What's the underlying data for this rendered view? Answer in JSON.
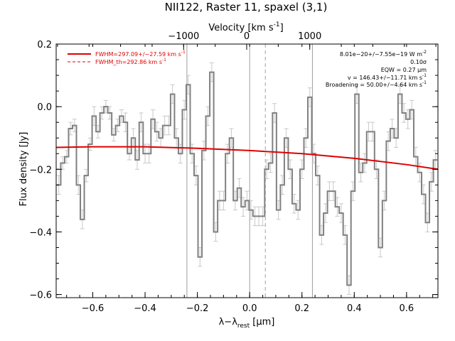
{
  "chart_data": {
    "type": "line",
    "title": "NII122, Raster 11, spaxel (3,1)",
    "xlabel_prefix": "λ−λ",
    "xlabel_sub": "rest",
    "xlabel_suffix": " [μm]",
    "ylabel": "Flux density [Jy]",
    "top_axis_label": "Velocity [km s",
    "top_axis_label_sup": "-1",
    "top_axis_label_end": "]",
    "xlim": [
      -0.74,
      0.72
    ],
    "ylim": [
      -0.61,
      0.2
    ],
    "x_ticks": [
      -0.6,
      -0.4,
      -0.2,
      0.0,
      0.2,
      0.4,
      0.6
    ],
    "x_tick_labels": [
      "−0.6",
      "−0.4",
      "−0.2",
      "0.0",
      "0.2",
      "0.4",
      "0.6"
    ],
    "y_ticks": [
      0.2,
      0.0,
      -0.2,
      -0.4,
      -0.6
    ],
    "y_tick_labels": [
      "0.2",
      "0.0",
      "−0.2",
      "−0.4",
      "−0.6"
    ],
    "top_ticks": [
      -1000,
      0,
      1000
    ],
    "top_tick_labels": [
      "−1000",
      "0",
      "1000"
    ],
    "reference_lines": {
      "solid": [
        -0.24,
        0.0,
        0.24
      ],
      "dashed": [
        0.06
      ]
    },
    "legend": {
      "fwhm": "FWHM=297.09+/−27.59 km s",
      "fwhm_sup": "-1",
      "fwhm_th": "FWHM_th=292.86 km s",
      "fwhm_th_sup": "-1"
    },
    "stats": {
      "flux": "8.01e−20+/−7.55e−19 W m",
      "flux_sup": "-2",
      "sigma": "0.10σ",
      "eqw": "EQW = 0.27 μm",
      "velocity": "v = 146.43+/−11.71 km s",
      "velocity_sup": "-1",
      "broadening": "Broadening = 50.00+/−4.64 km s",
      "broadening_sup": "-1"
    },
    "colors": {
      "data": "#808080",
      "errorbar": "#c8c8c8",
      "fit": "#e00000",
      "ref_line": "#a0a0a0"
    },
    "series": [
      {
        "x": [
          -0.73,
          -0.715,
          -0.7,
          -0.685,
          -0.67,
          -0.655,
          -0.64,
          -0.625,
          -0.61,
          -0.595,
          -0.58,
          -0.565,
          -0.55,
          -0.535,
          -0.52,
          -0.505,
          -0.49,
          -0.475,
          -0.46,
          -0.445,
          -0.43,
          -0.415,
          -0.4,
          -0.385,
          -0.37,
          -0.355,
          -0.34,
          -0.325,
          -0.31,
          -0.295,
          -0.28,
          -0.265,
          -0.25,
          -0.235,
          -0.22,
          -0.205,
          -0.19,
          -0.175,
          -0.16,
          -0.145,
          -0.13,
          -0.115,
          -0.1,
          -0.085,
          -0.07,
          -0.055,
          -0.04,
          -0.025,
          -0.01,
          0.005,
          0.02,
          0.035,
          0.05,
          0.065,
          0.08,
          0.095,
          0.11,
          0.125,
          0.14,
          0.155,
          0.17,
          0.185,
          0.2,
          0.215,
          0.23,
          0.245,
          0.26,
          0.275,
          0.29,
          0.305,
          0.32,
          0.335,
          0.35,
          0.365,
          0.38,
          0.395,
          0.41,
          0.425,
          0.44,
          0.455,
          0.47,
          0.485,
          0.5,
          0.515,
          0.53,
          0.545,
          0.56,
          0.575,
          0.59,
          0.605,
          0.62,
          0.635,
          0.65,
          0.665,
          0.68,
          0.695,
          0.71
        ],
        "y": [
          -0.25,
          -0.18,
          -0.16,
          -0.07,
          -0.06,
          -0.25,
          -0.36,
          -0.22,
          -0.12,
          -0.03,
          -0.08,
          -0.02,
          0.0,
          -0.02,
          -0.09,
          -0.06,
          -0.03,
          -0.05,
          -0.15,
          -0.1,
          -0.17,
          -0.05,
          -0.15,
          -0.15,
          -0.04,
          -0.08,
          -0.1,
          -0.06,
          -0.06,
          0.04,
          -0.1,
          -0.15,
          -0.01,
          0.07,
          -0.15,
          -0.22,
          -0.48,
          -0.14,
          -0.03,
          0.11,
          -0.4,
          -0.3,
          -0.3,
          -0.15,
          -0.1,
          -0.3,
          -0.26,
          -0.32,
          -0.3,
          -0.33,
          -0.35,
          -0.35,
          -0.35,
          -0.2,
          -0.18,
          -0.02,
          -0.33,
          -0.25,
          -0.1,
          -0.2,
          -0.31,
          -0.33,
          -0.2,
          -0.1,
          0.03,
          -0.15,
          -0.22,
          -0.41,
          -0.34,
          -0.27,
          -0.27,
          -0.32,
          -0.34,
          -0.41,
          -0.57,
          -0.27,
          0.04,
          -0.21,
          -0.18,
          -0.08,
          -0.08,
          -0.2,
          -0.45,
          -0.3,
          -0.11,
          -0.07,
          -0.1,
          0.04,
          -0.02,
          -0.04,
          -0.01,
          -0.16,
          -0.21,
          -0.28,
          -0.37,
          -0.24,
          -0.17
        ],
        "errors": [
          0.03,
          0.02,
          0.02,
          0.02,
          0.02,
          0.03,
          0.03,
          0.02,
          0.02,
          0.03,
          0.02,
          0.02,
          0.02,
          0.02,
          0.02,
          0.02,
          0.02,
          0.03,
          0.02,
          0.03,
          0.03,
          0.03,
          0.03,
          0.03,
          0.03,
          0.03,
          0.03,
          0.03,
          0.03,
          0.03,
          0.03,
          0.03,
          0.03,
          0.03,
          0.03,
          0.03,
          0.03,
          0.03,
          0.03,
          0.03,
          0.03,
          0.03,
          0.03,
          0.03,
          0.03,
          0.03,
          0.03,
          0.03,
          0.03,
          0.03,
          0.03,
          0.03,
          0.03,
          0.03,
          0.03,
          0.03,
          0.03,
          0.03,
          0.03,
          0.03,
          0.03,
          0.03,
          0.03,
          0.03,
          0.03,
          0.03,
          0.03,
          0.03,
          0.03,
          0.03,
          0.03,
          0.03,
          0.03,
          0.03,
          0.03,
          0.03,
          0.03,
          0.03,
          0.03,
          0.03,
          0.03,
          0.03,
          0.03,
          0.03,
          0.03,
          0.03,
          0.03,
          0.03,
          0.03,
          0.03,
          0.03,
          0.03,
          0.03,
          0.03,
          0.03,
          0.03,
          0.03
        ]
      },
      {
        "x": [
          -0.74,
          -0.6,
          -0.4,
          -0.2,
          0.0,
          0.2,
          0.4,
          0.6,
          0.72
        ],
        "y": [
          -0.13,
          -0.128,
          -0.128,
          -0.133,
          -0.14,
          -0.15,
          -0.165,
          -0.185,
          -0.2
        ]
      }
    ]
  }
}
